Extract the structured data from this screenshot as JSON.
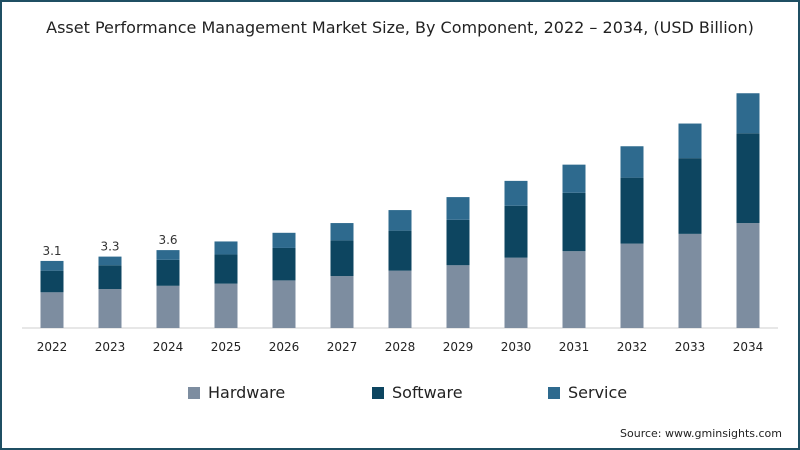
{
  "chart_data": {
    "type": "bar",
    "stacked": true,
    "title": "Asset Performance Management Market Size, By Component, 2022 – 2034, (USD Billion)",
    "categories": [
      "2022",
      "2023",
      "2024",
      "2025",
      "2026",
      "2027",
      "2028",
      "2029",
      "2030",
      "2031",
      "2032",
      "2033",
      "2034"
    ],
    "series": [
      {
        "name": "Hardware",
        "color": "#7d8da0",
        "values": [
          1.65,
          1.8,
          1.95,
          2.05,
          2.2,
          2.4,
          2.65,
          2.9,
          3.25,
          3.55,
          3.9,
          4.35,
          4.85
        ]
      },
      {
        "name": "Software",
        "color": "#0d4560",
        "values": [
          1.0,
          1.1,
          1.2,
          1.35,
          1.5,
          1.65,
          1.85,
          2.1,
          2.4,
          2.7,
          3.05,
          3.5,
          4.15
        ]
      },
      {
        "name": "Service",
        "color": "#2e6a8e",
        "values": [
          0.45,
          0.4,
          0.45,
          0.6,
          0.7,
          0.8,
          0.95,
          1.05,
          1.15,
          1.3,
          1.45,
          1.6,
          1.85
        ]
      }
    ],
    "data_labels": [
      "3.1",
      "3.3",
      "3.6",
      "",
      "",
      "",
      "",
      "",
      "",
      "",
      "",
      "",
      ""
    ],
    "ylim": [
      0,
      11
    ],
    "xlabel": "",
    "ylabel": "",
    "grid": false,
    "legend_position": "bottom"
  },
  "source": "Source: www.gminsights.com"
}
